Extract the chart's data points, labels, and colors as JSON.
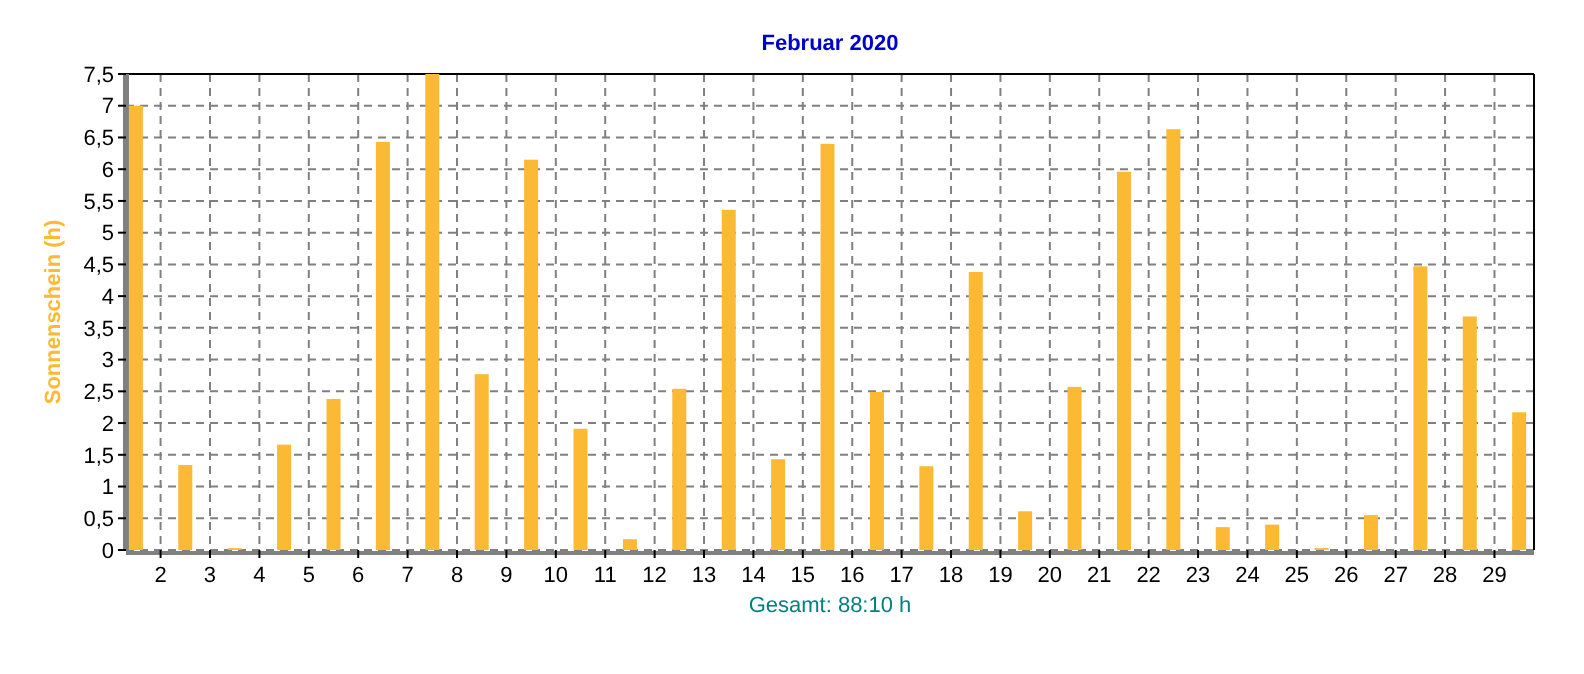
{
  "chart_data": {
    "type": "bar",
    "title": "Februar 2020",
    "ylabel": "Sonnenschein  (h)",
    "xlabel": "Gesamt: 88:10 h",
    "x": [
      1.5,
      2.5,
      3.5,
      4.5,
      5.5,
      6.5,
      7.5,
      8.5,
      9.5,
      10.5,
      11.5,
      12.5,
      13.5,
      14.5,
      15.5,
      16.5,
      17.5,
      18.5,
      19.5,
      20.5,
      21.5,
      22.5,
      23.5,
      24.5,
      25.5,
      26.5,
      27.5,
      28.5,
      29.5
    ],
    "values": [
      7.0,
      1.34,
      0.03,
      1.66,
      2.38,
      6.43,
      7.5,
      2.77,
      6.15,
      1.91,
      0.17,
      2.54,
      5.36,
      1.43,
      6.4,
      2.49,
      1.32,
      4.38,
      0.61,
      2.57,
      5.96,
      6.63,
      0.36,
      0.4,
      0.03,
      0.55,
      4.47,
      3.68,
      2.17
    ],
    "color": "#fbb934",
    "xlim": [
      1.3,
      29.8
    ],
    "xticks": [
      2,
      3,
      4,
      5,
      6,
      7,
      8,
      9,
      10,
      11,
      12,
      13,
      14,
      15,
      16,
      17,
      18,
      19,
      20,
      21,
      22,
      23,
      24,
      25,
      26,
      27,
      28,
      29
    ],
    "ylim": [
      0,
      7.5
    ],
    "yticks": [
      0,
      {
        "value": 0.5,
        "label": "0,5"
      },
      1,
      {
        "value": 1.5,
        "label": "1,5"
      },
      2,
      {
        "value": 2.5,
        "label": "2,5"
      },
      3,
      {
        "value": 3.5,
        "label": "3,5"
      },
      4,
      {
        "value": 4.5,
        "label": "4,5"
      },
      5,
      {
        "value": 5.5,
        "label": "5,5"
      },
      6,
      {
        "value": 6.5,
        "label": "6,5"
      },
      7,
      {
        "value": 7.5,
        "label": "7,5"
      }
    ],
    "grid": true,
    "line_style": "dashed"
  }
}
